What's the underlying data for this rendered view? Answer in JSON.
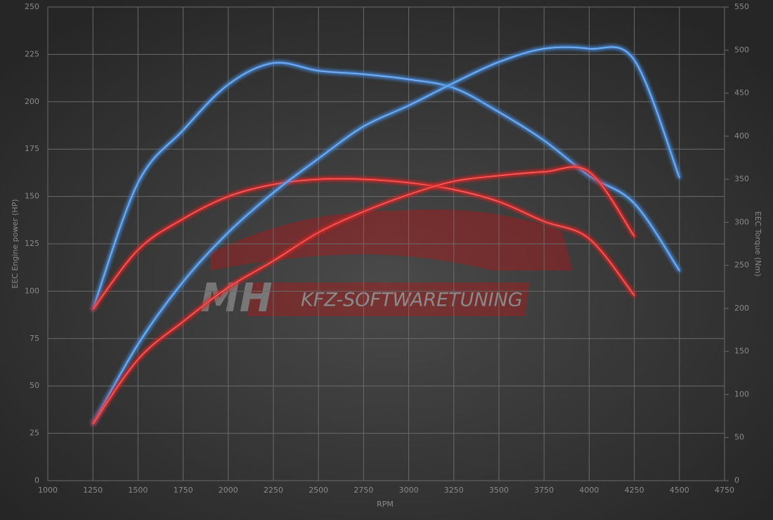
{
  "chart_data": {
    "type": "line",
    "xlabel": "RPM",
    "ylabel": "EEC Engine power (HP)",
    "y2label": "EEC Torque (Nm)",
    "watermark": {
      "brand": "MH",
      "text": "KFZ-SOFTWARETUNING"
    },
    "xlim": [
      1000,
      4750
    ],
    "xticks": [
      1000,
      1250,
      1500,
      1750,
      2000,
      2250,
      2500,
      2750,
      3000,
      3250,
      3500,
      3750,
      4000,
      4250,
      4500,
      4750
    ],
    "ylim": [
      0,
      250
    ],
    "yticks": [
      0,
      25,
      50,
      75,
      100,
      125,
      150,
      175,
      200,
      225,
      250
    ],
    "y2lim": [
      0,
      550
    ],
    "y2ticks": [
      0,
      50,
      100,
      150,
      200,
      250,
      300,
      350,
      400,
      450,
      500,
      550
    ],
    "grid": true,
    "series": [
      {
        "color": "#4a8fe0",
        "axis": "y2",
        "x": [
          1250,
          1500,
          1750,
          2000,
          2250,
          2500,
          2750,
          3000,
          3250,
          3500,
          3750,
          4000,
          4250,
          4500
        ],
        "values": [
          199,
          346,
          407,
          460,
          485,
          476,
          472,
          466,
          456,
          428,
          395,
          354,
          322,
          244
        ]
      },
      {
        "color": "#e02a2a",
        "axis": "y2",
        "x": [
          1250,
          1500,
          1750,
          2000,
          2250,
          2500,
          2750,
          3000,
          3250,
          3500,
          3750,
          4000,
          4250
        ],
        "values": [
          199,
          268,
          304,
          330,
          344,
          350,
          350,
          346,
          338,
          324,
          301,
          281,
          215
        ]
      },
      {
        "color": "#4a8fe0",
        "axis": "y",
        "x": [
          1250,
          1500,
          1750,
          2000,
          2250,
          2500,
          2750,
          3000,
          3250,
          3500,
          3750,
          4000,
          4250,
          4500
        ],
        "values": [
          30,
          72,
          105,
          131,
          152,
          170,
          187,
          198,
          210,
          221,
          228,
          228,
          222,
          160
        ]
      },
      {
        "color": "#e02a2a",
        "axis": "y",
        "x": [
          1250,
          1500,
          1750,
          2000,
          2250,
          2500,
          2750,
          3000,
          3250,
          3500,
          3750,
          4000,
          4250
        ],
        "values": [
          30,
          64,
          84,
          102,
          116,
          131,
          142,
          151,
          158,
          161,
          163,
          163,
          129
        ]
      }
    ]
  }
}
